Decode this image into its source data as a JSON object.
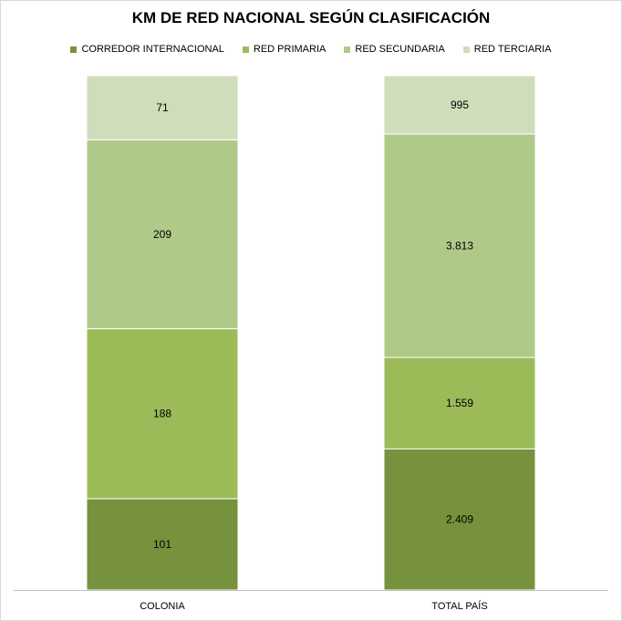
{
  "chart_data": {
    "type": "bar",
    "stacked": true,
    "percent_stacked": true,
    "title": "KM DE RED NACIONAL SEGÚN CLASIFICACIÓN",
    "xlabel": "",
    "ylabel": "",
    "categories": [
      "COLONIA",
      "TOTAL PAÍS"
    ],
    "series": [
      {
        "name": "CORREDOR INTERNACIONAL",
        "values": [
          101,
          2409
        ],
        "labels": [
          "101",
          "2.409"
        ],
        "color": "#76923c"
      },
      {
        "name": "RED PRIMARIA",
        "values": [
          188,
          1559
        ],
        "labels": [
          "188",
          "1.559"
        ],
        "color": "#9bbb59"
      },
      {
        "name": "RED SECUNDARIA",
        "values": [
          209,
          3813
        ],
        "labels": [
          "209",
          "3.813"
        ],
        "color": "#afca88"
      },
      {
        "name": "RED TERCIARIA",
        "values": [
          71,
          995
        ],
        "labels": [
          "71",
          "995"
        ],
        "color": "#d0ddbb"
      }
    ],
    "legend_position": "top",
    "grid": false
  }
}
